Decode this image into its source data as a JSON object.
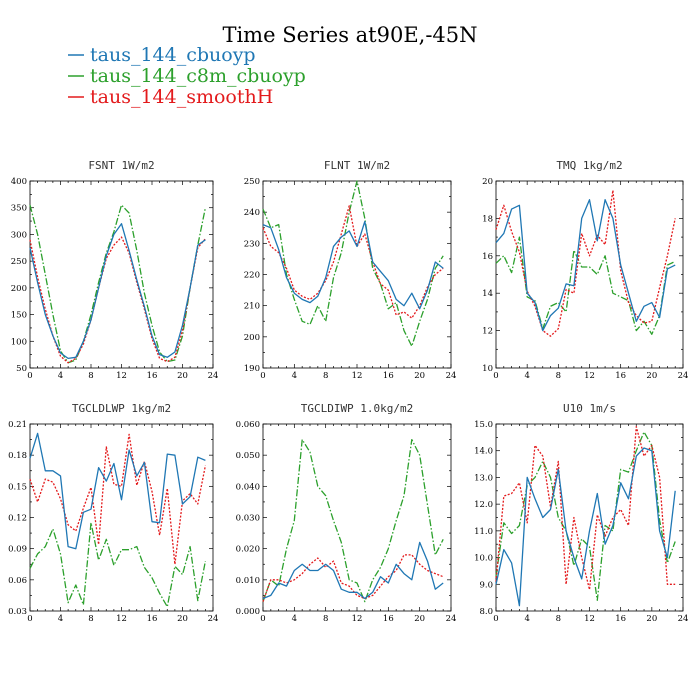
{
  "figure": {
    "title": "Time Series at90E,-45N"
  },
  "legend": [
    {
      "name": "taus_144_cbuoyp",
      "color": "#1f77b4",
      "dash": "solid"
    },
    {
      "name": "taus_144_c8m_cbuoyp",
      "color": "#2ca02c",
      "dash": "dashdot"
    },
    {
      "name": "taus_144_smoothH",
      "color": "#e31a1c",
      "dash": "dotted"
    }
  ],
  "chart_data": [
    {
      "type": "line",
      "title": "FSNT   1W/m2",
      "x": [
        0,
        1,
        2,
        3,
        4,
        5,
        6,
        7,
        8,
        9,
        10,
        11,
        12,
        13,
        14,
        15,
        16,
        17,
        18,
        19,
        20,
        21,
        22,
        23
      ],
      "xlim": [
        0,
        24
      ],
      "xticks": [
        "0",
        "4",
        "8",
        "12",
        "16",
        "20",
        "24"
      ],
      "ylim": [
        50,
        400
      ],
      "yticks": [
        "50",
        "100",
        "150",
        "200",
        "250",
        "300",
        "350",
        "400"
      ],
      "series": [
        {
          "name": "taus_144_cbuoyp",
          "values": [
            275,
            210,
            150,
            110,
            78,
            68,
            70,
            100,
            140,
            200,
            260,
            300,
            320,
            270,
            215,
            165,
            110,
            75,
            70,
            80,
            130,
            200,
            280,
            290
          ]
        },
        {
          "name": "taus_144_c8m_cbuoyp",
          "values": [
            355,
            300,
            225,
            150,
            82,
            60,
            65,
            100,
            150,
            210,
            265,
            305,
            355,
            340,
            270,
            190,
            130,
            80,
            62,
            65,
            110,
            200,
            280,
            350
          ]
        },
        {
          "name": "taus_144_smoothH",
          "values": [
            290,
            220,
            160,
            110,
            72,
            60,
            68,
            95,
            140,
            200,
            255,
            280,
            295,
            265,
            210,
            160,
            105,
            68,
            62,
            70,
            120,
            200,
            275,
            292
          ]
        }
      ]
    },
    {
      "type": "line",
      "title": "FLNT   1W/m2",
      "x": [
        0,
        1,
        2,
        3,
        4,
        5,
        6,
        7,
        8,
        9,
        10,
        11,
        12,
        13,
        14,
        15,
        16,
        17,
        18,
        19,
        20,
        21,
        22,
        23
      ],
      "xlim": [
        0,
        24
      ],
      "xticks": [
        "0",
        "4",
        "8",
        "12",
        "16",
        "20",
        "24"
      ],
      "ylim": [
        190,
        250
      ],
      "yticks": [
        "190",
        "200",
        "210",
        "220",
        "230",
        "240",
        "250"
      ],
      "series": [
        {
          "name": "taus_144_cbuoyp",
          "values": [
            236,
            235,
            228,
            219,
            214,
            212,
            211,
            213,
            219,
            229,
            232,
            234,
            229,
            237,
            224,
            221,
            218,
            212,
            210,
            214,
            209,
            215,
            224,
            222
          ]
        },
        {
          "name": "taus_144_c8m_cbuoyp",
          "values": [
            241,
            235,
            236,
            220,
            212,
            205,
            204,
            210,
            205,
            219,
            227,
            240,
            250,
            238,
            222,
            217,
            209,
            211,
            202,
            197,
            205,
            212,
            222,
            226
          ]
        },
        {
          "name": "taus_144_smoothH",
          "values": [
            235,
            229,
            227,
            222,
            215,
            213,
            212,
            214,
            218,
            224,
            233,
            242,
            229,
            233,
            224,
            217,
            215,
            207,
            208,
            206,
            210,
            216,
            220,
            222
          ]
        }
      ]
    },
    {
      "type": "line",
      "title": "TMQ   1kg/m2",
      "x": [
        0,
        1,
        2,
        3,
        4,
        5,
        6,
        7,
        8,
        9,
        10,
        11,
        12,
        13,
        14,
        15,
        16,
        17,
        18,
        19,
        20,
        21,
        22,
        23
      ],
      "xlim": [
        0,
        24
      ],
      "xticks": [
        "0",
        "4",
        "8",
        "12",
        "16",
        "20",
        "24"
      ],
      "ylim": [
        10,
        20
      ],
      "yticks": [
        "10",
        "12",
        "14",
        "16",
        "18",
        "20"
      ],
      "series": [
        {
          "name": "taus_144_cbuoyp",
          "values": [
            16.7,
            17.2,
            18.5,
            18.7,
            14.0,
            13.5,
            12.0,
            12.8,
            13.2,
            14.5,
            14.4,
            18.0,
            19.0,
            16.8,
            19.0,
            18.0,
            15.5,
            14.0,
            12.5,
            13.3,
            13.5,
            12.7,
            15.3,
            15.5
          ]
        },
        {
          "name": "taus_144_c8m_cbuoyp",
          "values": [
            15.6,
            16.0,
            15.1,
            17.0,
            13.8,
            13.6,
            12.1,
            13.3,
            13.5,
            13.0,
            16.3,
            15.4,
            15.4,
            15.0,
            16.0,
            14.0,
            13.8,
            13.6,
            12.0,
            12.5,
            11.8,
            12.8,
            15.5,
            15.7
          ]
        },
        {
          "name": "taus_144_smoothH",
          "values": [
            17.4,
            18.7,
            17.3,
            16.2,
            14.1,
            13.3,
            12.0,
            11.7,
            12.1,
            14.2,
            14.0,
            17.2,
            16.0,
            17.1,
            16.6,
            19.5,
            15.2,
            13.5,
            12.8,
            12.4,
            12.5,
            14.3,
            16.0,
            18.0
          ]
        }
      ]
    },
    {
      "type": "line",
      "title": "TGCLDLWP   1kg/m2",
      "x": [
        0,
        1,
        2,
        3,
        4,
        5,
        6,
        7,
        8,
        9,
        10,
        11,
        12,
        13,
        14,
        15,
        16,
        17,
        18,
        19,
        20,
        21,
        22,
        23
      ],
      "xlim": [
        0,
        24
      ],
      "xticks": [
        "0",
        "4",
        "8",
        "12",
        "16",
        "20",
        "24"
      ],
      "ylim": [
        0.03,
        0.21
      ],
      "yticks": [
        "0.03",
        "0.06",
        "0.09",
        "0.12",
        "0.15",
        "0.18",
        "0.21"
      ],
      "series": [
        {
          "name": "taus_144_cbuoyp",
          "values": [
            0.177,
            0.201,
            0.165,
            0.165,
            0.16,
            0.092,
            0.09,
            0.125,
            0.128,
            0.168,
            0.155,
            0.172,
            0.137,
            0.185,
            0.16,
            0.173,
            0.116,
            0.115,
            0.181,
            0.18,
            0.133,
            0.14,
            0.178,
            0.175
          ]
        },
        {
          "name": "taus_144_c8m_cbuoyp",
          "values": [
            0.071,
            0.085,
            0.092,
            0.109,
            0.085,
            0.038,
            0.055,
            0.036,
            0.115,
            0.079,
            0.099,
            0.074,
            0.089,
            0.089,
            0.092,
            0.072,
            0.062,
            0.047,
            0.034,
            0.073,
            0.065,
            0.092,
            0.04,
            0.078
          ]
        },
        {
          "name": "taus_144_smoothH",
          "values": [
            0.157,
            0.135,
            0.157,
            0.154,
            0.138,
            0.113,
            0.107,
            0.129,
            0.149,
            0.094,
            0.188,
            0.152,
            0.15,
            0.2,
            0.151,
            0.174,
            0.145,
            0.103,
            0.148,
            0.075,
            0.136,
            0.143,
            0.133,
            0.17
          ]
        }
      ]
    },
    {
      "type": "line",
      "title": "TGCLDIWP   1.0kg/m2",
      "x": [
        0,
        1,
        2,
        3,
        4,
        5,
        6,
        7,
        8,
        9,
        10,
        11,
        12,
        13,
        14,
        15,
        16,
        17,
        18,
        19,
        20,
        21,
        22,
        23
      ],
      "xlim": [
        0,
        24
      ],
      "xticks": [
        "0",
        "4",
        "8",
        "12",
        "16",
        "20",
        "24"
      ],
      "ylim": [
        0.0,
        0.06
      ],
      "yticks": [
        "0.000",
        "0.010",
        "0.020",
        "0.030",
        "0.040",
        "0.050",
        "0.060"
      ],
      "series": [
        {
          "name": "taus_144_cbuoyp",
          "values": [
            0.004,
            0.005,
            0.009,
            0.008,
            0.013,
            0.015,
            0.013,
            0.013,
            0.015,
            0.013,
            0.007,
            0.006,
            0.006,
            0.004,
            0.006,
            0.011,
            0.009,
            0.015,
            0.012,
            0.01,
            0.022,
            0.016,
            0.007,
            0.009
          ]
        },
        {
          "name": "taus_144_c8m_cbuoyp",
          "values": [
            0.003,
            0.01,
            0.008,
            0.02,
            0.029,
            0.055,
            0.051,
            0.04,
            0.037,
            0.029,
            0.022,
            0.01,
            0.009,
            0.003,
            0.01,
            0.014,
            0.02,
            0.029,
            0.037,
            0.055,
            0.05,
            0.034,
            0.018,
            0.023
          ]
        },
        {
          "name": "taus_144_smoothH",
          "values": [
            0.003,
            0.01,
            0.01,
            0.009,
            0.01,
            0.012,
            0.015,
            0.017,
            0.014,
            0.016,
            0.009,
            0.008,
            0.005,
            0.004,
            0.005,
            0.008,
            0.011,
            0.013,
            0.018,
            0.018,
            0.015,
            0.013,
            0.012,
            0.011
          ]
        }
      ]
    },
    {
      "type": "line",
      "title": "U10   1m/s",
      "x": [
        0,
        1,
        2,
        3,
        4,
        5,
        6,
        7,
        8,
        9,
        10,
        11,
        12,
        13,
        14,
        15,
        16,
        17,
        18,
        19,
        20,
        21,
        22,
        23
      ],
      "xlim": [
        0,
        24
      ],
      "xticks": [
        "0",
        "4",
        "8",
        "12",
        "16",
        "20",
        "24"
      ],
      "ylim": [
        8.0,
        15.0
      ],
      "yticks": [
        "8.0",
        "9.0",
        "10.0",
        "11.0",
        "12.0",
        "13.0",
        "14.0",
        "15.0"
      ],
      "series": [
        {
          "name": "taus_144_cbuoyp",
          "values": [
            9.0,
            10.3,
            9.8,
            8.2,
            13.0,
            12.2,
            11.5,
            11.8,
            13.3,
            11.0,
            10.0,
            9.2,
            11.0,
            12.4,
            10.5,
            11.2,
            12.8,
            12.2,
            13.8,
            14.1,
            14.0,
            11.0,
            10.0,
            12.5
          ]
        },
        {
          "name": "taus_144_c8m_cbuoyp",
          "values": [
            9.3,
            11.3,
            10.9,
            11.2,
            12.7,
            13.0,
            13.6,
            13.0,
            11.5,
            11.0,
            9.7,
            10.7,
            10.4,
            8.4,
            11.2,
            11.0,
            13.3,
            13.2,
            14.0,
            14.7,
            14.2,
            11.4,
            9.8,
            10.6
          ]
        },
        {
          "name": "taus_144_smoothH",
          "values": [
            9.1,
            12.3,
            12.4,
            12.8,
            11.3,
            14.2,
            13.8,
            11.9,
            13.6,
            9.0,
            11.5,
            10.0,
            8.8,
            11.6,
            10.8,
            11.5,
            11.8,
            11.2,
            14.9,
            13.8,
            14.2,
            13.0,
            9.0,
            9.0
          ]
        }
      ]
    }
  ]
}
